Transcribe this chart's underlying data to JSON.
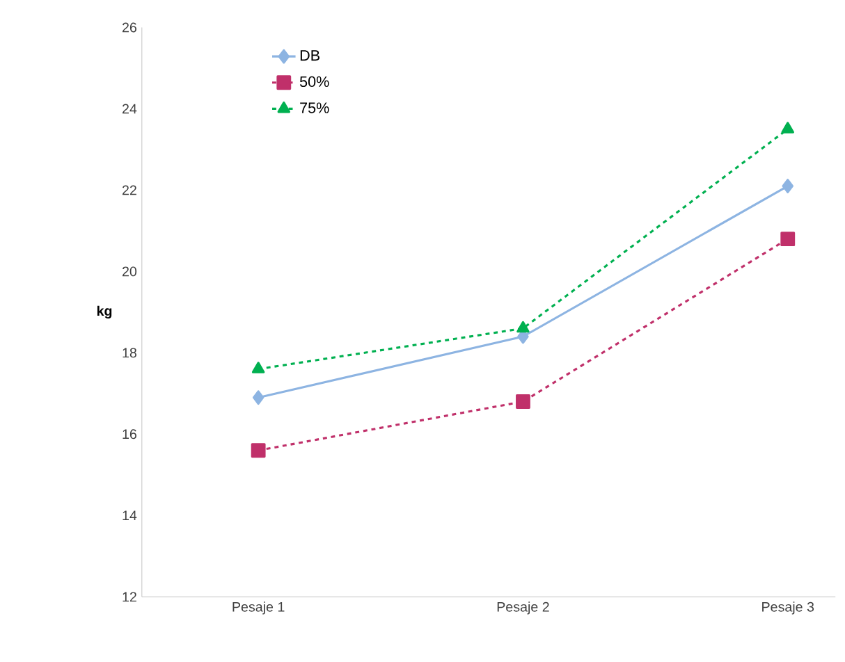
{
  "chart_data": {
    "type": "line",
    "ylabel": "kg",
    "categories": [
      "Pesaje 1",
      "Pesaje 2",
      "Pesaje 3"
    ],
    "series": [
      {
        "name": "DB",
        "color": "#8db4e2",
        "values": [
          16.9,
          18.4,
          22.1
        ],
        "marker": "diamond",
        "line_style": "solid"
      },
      {
        "name": "50%",
        "color": "#c0306a",
        "values": [
          15.6,
          16.8,
          20.8
        ],
        "marker": "square",
        "line_style": "dashed"
      },
      {
        "name": "75%",
        "color": "#00b050",
        "values": [
          17.6,
          18.6,
          23.5
        ],
        "marker": "triangle",
        "line_style": "dashed"
      }
    ],
    "ylim": [
      12,
      26
    ],
    "yticks": [
      12,
      14,
      16,
      18,
      20,
      22,
      24,
      26
    ],
    "grid": false,
    "legend": "top left"
  }
}
